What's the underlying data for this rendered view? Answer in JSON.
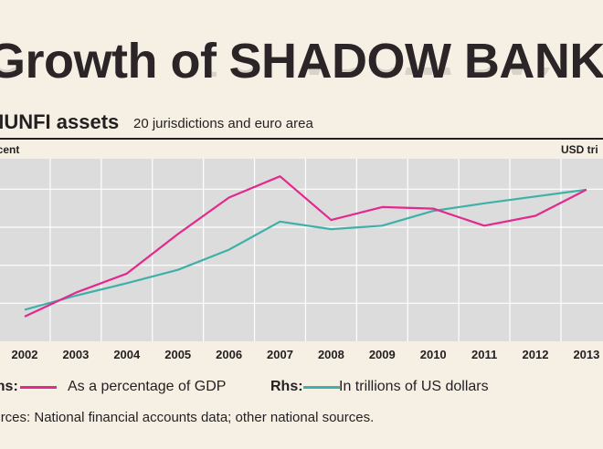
{
  "title": {
    "part1": "Growth of",
    "part2": "SHADOW BANKING"
  },
  "subtitle": {
    "main": "MUNFI assets",
    "note": "20 jurisdictions and euro area"
  },
  "axis_labels": {
    "left": "Per cent",
    "right": "USD tri"
  },
  "legend": {
    "lhs_prefix": "Lhs:",
    "lhs_label": "As a percentage of GDP",
    "rhs_prefix": "Rhs:",
    "rhs_label": "In trillions of US dollars"
  },
  "source": "Sources: National financial accounts data; other national sources.",
  "colors": {
    "background": "#f6f0e4",
    "plot_background": "#dcdcdc",
    "gridline": "#ffffff",
    "pct_gdp": "#e2298e",
    "usd_trillions": "#3fb0a9",
    "text": "#231f20"
  },
  "chart_data": {
    "type": "line",
    "categories": [
      "2002",
      "2003",
      "2004",
      "2005",
      "2006",
      "2007",
      "2008",
      "2009",
      "2010",
      "2011",
      "2012",
      "2013"
    ],
    "grid": true,
    "series": [
      {
        "name": "As a percentage of GDP",
        "axis": "left",
        "color": "#e2298e",
        "values": [
          0.65,
          1.28,
          1.78,
          2.82,
          3.78,
          4.34,
          3.19,
          3.53,
          3.49,
          3.04,
          3.3,
          3.99
        ]
      },
      {
        "name": "In trillions of US dollars",
        "axis": "right",
        "color": "#3fb0a9",
        "values": [
          0.83,
          1.2,
          1.53,
          1.88,
          2.41,
          3.15,
          2.95,
          3.04,
          3.43,
          3.63,
          3.81,
          3.99
        ]
      }
    ]
  }
}
